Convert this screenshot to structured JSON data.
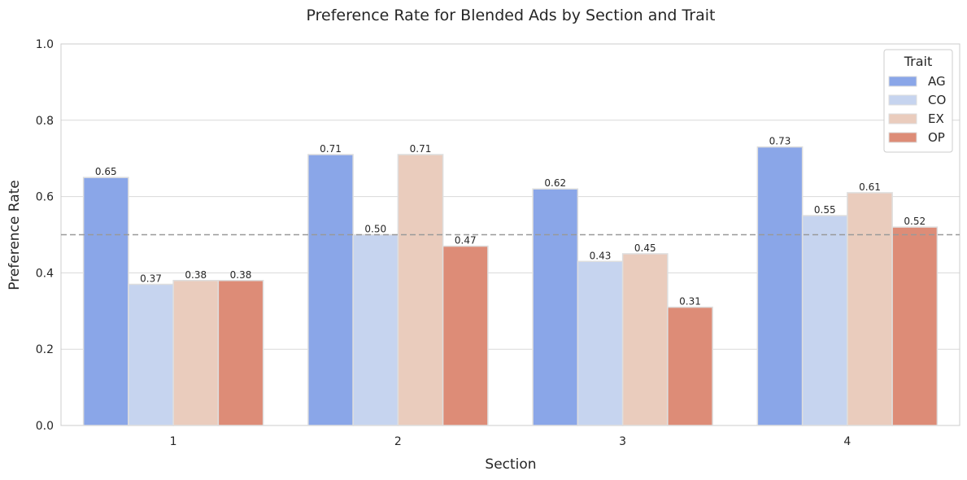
{
  "chart_data": {
    "type": "bar",
    "title": "Preference Rate for Blended Ads by Section and Trait",
    "xlabel": "Section",
    "ylabel": "Preference Rate",
    "categories": [
      "1",
      "2",
      "3",
      "4"
    ],
    "ylim": [
      0,
      1.0
    ],
    "yticks": [
      "0.0",
      "0.2",
      "0.4",
      "0.6",
      "0.8",
      "1.0"
    ],
    "grid": true,
    "reference_line": 0.5,
    "legend": {
      "title": "Trait",
      "position": "top-right"
    },
    "series": [
      {
        "name": "AG",
        "color": "#8aa6e8",
        "values": [
          0.65,
          0.71,
          0.62,
          0.73
        ],
        "labels": [
          "0.65",
          "0.71",
          "0.62",
          "0.73"
        ]
      },
      {
        "name": "CO",
        "color": "#c6d4ef",
        "values": [
          0.37,
          0.5,
          0.43,
          0.55
        ],
        "labels": [
          "0.37",
          "0.50",
          "0.43",
          "0.55"
        ]
      },
      {
        "name": "EX",
        "color": "#eaccbd",
        "values": [
          0.38,
          0.71,
          0.45,
          0.61
        ],
        "labels": [
          "0.38",
          "0.71",
          "0.45",
          "0.61"
        ]
      },
      {
        "name": "OP",
        "color": "#dd8c77",
        "values": [
          0.38,
          0.47,
          0.31,
          0.52
        ],
        "labels": [
          "0.38",
          "0.47",
          "0.31",
          "0.52"
        ]
      }
    ]
  }
}
